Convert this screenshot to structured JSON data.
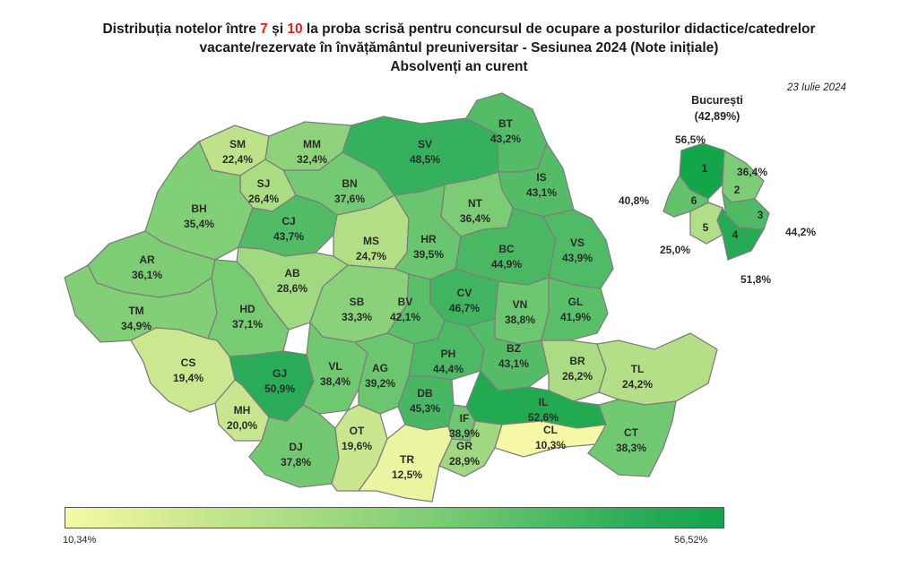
{
  "title": {
    "line1_pre": "Distribuția notelor între ",
    "line1_n1": "7",
    "line1_mid": " și ",
    "line1_n2": "10",
    "line1_post": " la proba scrisă pentru concursul de ocupare a posturilor didactice/catedrelor",
    "line2": "vacante/rezervate în învățământul preuniversitar - Sesiunea 2024 (Note inițiale)",
    "line3": "Absolvenți an curent"
  },
  "date": "23 Iulie 2024",
  "bucuresti": {
    "name": "București",
    "total": "(42,89%)"
  },
  "legend": {
    "min": "10,34%",
    "max": "56,52%",
    "min_value": 10.34,
    "max_value": 56.52
  },
  "colors": {
    "highlight": "#e0201b",
    "low": "#f6f8a6",
    "high": "#12a54a"
  },
  "counties": [
    {
      "code": "SM",
      "value": "22,4%",
      "v": 22.4
    },
    {
      "code": "MM",
      "value": "32,4%",
      "v": 32.4
    },
    {
      "code": "SV",
      "value": "48,5%",
      "v": 48.5
    },
    {
      "code": "BT",
      "value": "43,2%",
      "v": 43.2
    },
    {
      "code": "SJ",
      "value": "26,4%",
      "v": 26.4
    },
    {
      "code": "BN",
      "value": "37,6%",
      "v": 37.6
    },
    {
      "code": "IS",
      "value": "43,1%",
      "v": 43.1
    },
    {
      "code": "BH",
      "value": "35,4%",
      "v": 35.4
    },
    {
      "code": "CJ",
      "value": "43,7%",
      "v": 43.7
    },
    {
      "code": "NT",
      "value": "36,4%",
      "v": 36.4
    },
    {
      "code": "MS",
      "value": "24,7%",
      "v": 24.7
    },
    {
      "code": "HR",
      "value": "39,5%",
      "v": 39.5
    },
    {
      "code": "BC",
      "value": "44,9%",
      "v": 44.9
    },
    {
      "code": "VS",
      "value": "43,9%",
      "v": 43.9
    },
    {
      "code": "AR",
      "value": "36,1%",
      "v": 36.1
    },
    {
      "code": "AB",
      "value": "28,6%",
      "v": 28.6
    },
    {
      "code": "CV",
      "value": "46,7%",
      "v": 46.7
    },
    {
      "code": "TM",
      "value": "34,9%",
      "v": 34.9
    },
    {
      "code": "HD",
      "value": "37,1%",
      "v": 37.1
    },
    {
      "code": "SB",
      "value": "33,3%",
      "v": 33.3
    },
    {
      "code": "BV",
      "value": "42,1%",
      "v": 42.1
    },
    {
      "code": "VN",
      "value": "38,8%",
      "v": 38.8
    },
    {
      "code": "GL",
      "value": "41,9%",
      "v": 41.9
    },
    {
      "code": "CS",
      "value": "19,4%",
      "v": 19.4
    },
    {
      "code": "GJ",
      "value": "50,9%",
      "v": 50.9
    },
    {
      "code": "VL",
      "value": "38,4%",
      "v": 38.4
    },
    {
      "code": "AG",
      "value": "39,2%",
      "v": 39.2
    },
    {
      "code": "PH",
      "value": "44,4%",
      "v": 44.4
    },
    {
      "code": "BZ",
      "value": "43,1%",
      "v": 43.1
    },
    {
      "code": "BR",
      "value": "26,2%",
      "v": 26.2
    },
    {
      "code": "TL",
      "value": "24,2%",
      "v": 24.2
    },
    {
      "code": "DB",
      "value": "45,3%",
      "v": 45.3
    },
    {
      "code": "MH",
      "value": "20,0%",
      "v": 20.0
    },
    {
      "code": "IL",
      "value": "52,6%",
      "v": 52.6
    },
    {
      "code": "IF",
      "value": "38,9%",
      "v": 38.9
    },
    {
      "code": "DJ",
      "value": "37,8%",
      "v": 37.8
    },
    {
      "code": "OT",
      "value": "19,6%",
      "v": 19.6
    },
    {
      "code": "TR",
      "value": "12,5%",
      "v": 12.5
    },
    {
      "code": "GR",
      "value": "28,9%",
      "v": 28.9
    },
    {
      "code": "CL",
      "value": "10,3%",
      "v": 10.3
    },
    {
      "code": "CT",
      "value": "38,3%",
      "v": 38.3
    }
  ],
  "sectors": [
    {
      "num": "1",
      "value": "56,5%",
      "v": 56.5
    },
    {
      "num": "2",
      "value": "36,4%",
      "v": 36.4
    },
    {
      "num": "3",
      "value": "44,2%",
      "v": 44.2
    },
    {
      "num": "4",
      "value": "51,8%",
      "v": 51.8
    },
    {
      "num": "5",
      "value": "25,0%",
      "v": 25.0
    },
    {
      "num": "6",
      "value": "40,8%",
      "v": 40.8
    }
  ]
}
